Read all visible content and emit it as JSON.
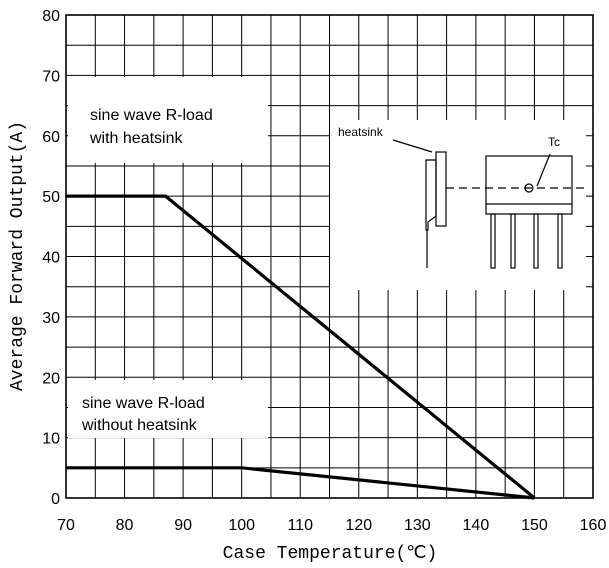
{
  "chart_data": {
    "type": "line",
    "xlabel": "Case Temperature(℃)",
    "ylabel": "Average Forward Output(A)",
    "xlim": [
      70,
      160
    ],
    "ylim": [
      0,
      80
    ],
    "x_ticks": [
      "70",
      "80",
      "90",
      "100",
      "110",
      "120",
      "130",
      "140",
      "150",
      "160"
    ],
    "y_ticks": [
      "0",
      "10",
      "20",
      "30",
      "40",
      "50",
      "60",
      "70",
      "80"
    ],
    "grid": true,
    "series": [
      {
        "name": "sine wave R-load with heatsink",
        "x": [
          70,
          87,
          150
        ],
        "y": [
          50,
          50,
          0
        ]
      },
      {
        "name": "sine wave R-load without heatsink",
        "x": [
          70,
          100,
          150
        ],
        "y": [
          5,
          5,
          0
        ]
      }
    ],
    "annotations": {
      "with_heatsink": [
        "sine wave R-load",
        "with heatsink"
      ],
      "without_heatsink": [
        "sine wave R-load",
        "without heatsink"
      ],
      "inset_heatsink": "heatsink",
      "inset_tc": "Tc"
    }
  }
}
